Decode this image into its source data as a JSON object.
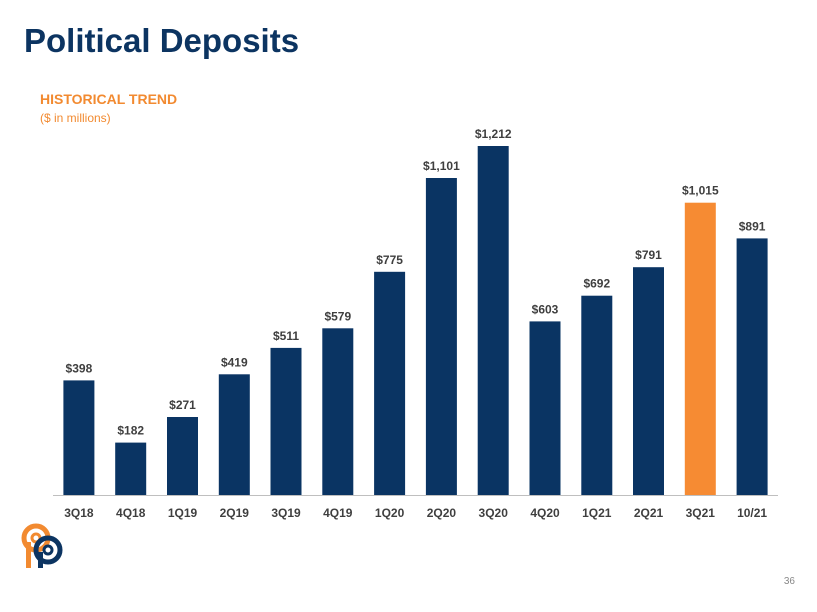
{
  "page": {
    "title": "Political Deposits",
    "subtitle": "HISTORICAL TREND",
    "units_note": "($ in millions)",
    "page_number": "36"
  },
  "colors": {
    "bar": "#0a3463",
    "highlight": "#f68b33",
    "title": "#0c3461",
    "accent": "#f28a30",
    "axis": "#bfbfbf",
    "label": "#3f3f3f"
  },
  "logo": {
    "icon": "company-logo-icon"
  },
  "chart_data": {
    "type": "bar",
    "categories": [
      "3Q18",
      "4Q18",
      "1Q19",
      "2Q19",
      "3Q19",
      "4Q19",
      "1Q20",
      "2Q20",
      "3Q20",
      "4Q20",
      "1Q21",
      "2Q21",
      "3Q21",
      "10/21"
    ],
    "values": [
      398,
      182,
      271,
      419,
      511,
      579,
      775,
      1101,
      1212,
      603,
      692,
      791,
      1015,
      891
    ],
    "data_labels": [
      "$398",
      "$182",
      "$271",
      "$419",
      "$511",
      "$579",
      "$775",
      "$1,101",
      "$1,212",
      "$603",
      "$692",
      "$791",
      "$1,015",
      "$891"
    ],
    "highlight_category": "3Q21",
    "title": "HISTORICAL TREND",
    "ylabel": "($ in millions)",
    "xlabel": "",
    "ylim": [
      0,
      1212
    ],
    "grid": false,
    "legend": "none"
  }
}
